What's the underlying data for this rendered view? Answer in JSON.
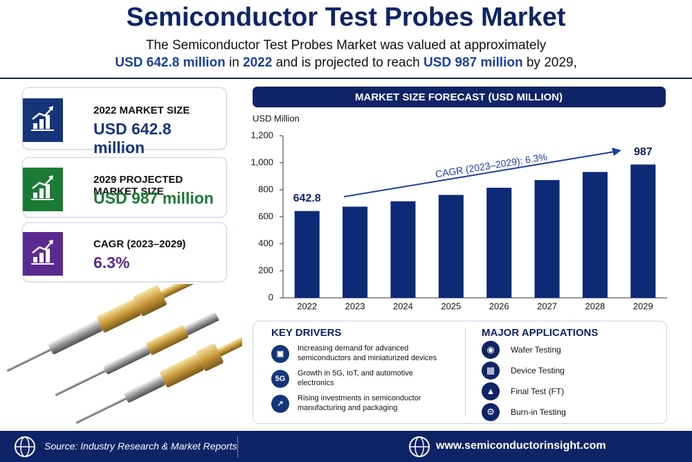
{
  "header": {
    "title": "Semiconductor Test Probes Market",
    "subtitle_line1": "The Semiconductor Test Probes Market was valued at approximately",
    "subtitle_line2": [
      "USD 642.8 million",
      " in ",
      "2022",
      " and is projected to reach ",
      "USD 987 million",
      " by 2029,"
    ]
  },
  "cards": [
    {
      "label": "2022 MARKET SIZE",
      "value": "USD 642.8 million",
      "color": "#15357a"
    },
    {
      "label": "2029 PROJECTED MARKET SIZE",
      "value": "USD 987 million",
      "color": "#1b7a34"
    },
    {
      "label": "CAGR (2023–2029)",
      "value": "6.3%",
      "color": "#5b2a91"
    }
  ],
  "chart_data": {
    "type": "bar",
    "title": "MARKET SIZE FORECAST (USD MILLION)",
    "y_label": "USD Million",
    "annotation": "CAGR (2023–2029): 6.3%",
    "categories": [
      "2022",
      "2023",
      "2024",
      "2025",
      "2026",
      "2027",
      "2028",
      "2029"
    ],
    "values": [
      642.8,
      675,
      715,
      762,
      815,
      872,
      932,
      987
    ],
    "value_labels": [
      "642.8",
      null,
      null,
      null,
      null,
      null,
      null,
      "987"
    ],
    "color": "#0d2a78",
    "ylim": [
      0,
      1200
    ],
    "yticks": [
      0,
      200,
      400,
      600,
      800,
      {
        "value": 1000,
        "label": "1,000"
      },
      {
        "value": 1200,
        "label": "1,200"
      }
    ],
    "grid": false
  },
  "drivers": {
    "title": "KEY DRIVERS",
    "items": [
      "Increasing demand for advanced semiconductors and miniaturized devices",
      "Growth in 5G, IoT, and automotive electronics",
      "Rising investments in semiconductor manufacturing and packaging"
    ]
  },
  "applications": {
    "title": "MAJOR APPLICATIONS",
    "items": [
      "Wafer Testing",
      "Device Testing",
      "Final Test (FT)",
      "Burn-in Testing"
    ]
  },
  "footer": {
    "source": "Source: Industry Research & Market Reports",
    "website": "www.semiconductorinsight.com"
  }
}
